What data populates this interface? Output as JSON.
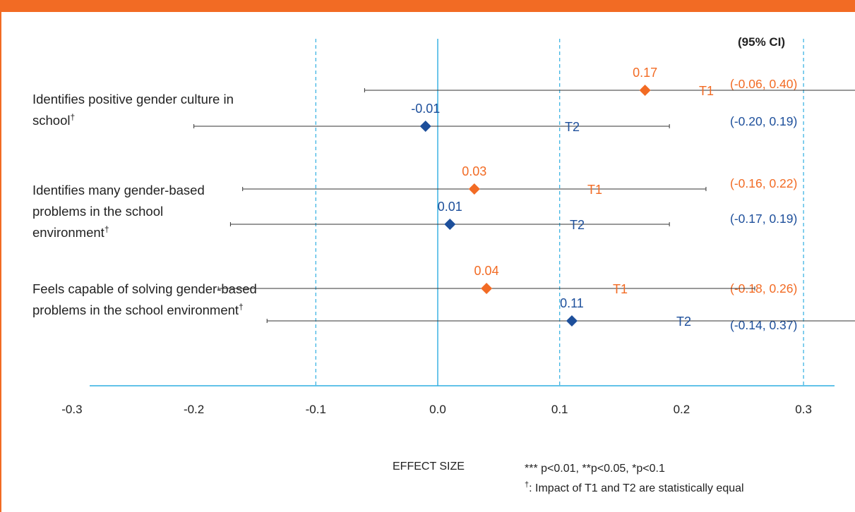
{
  "colors": {
    "accent": "#f26b24",
    "t1": "#f26b24",
    "t2": "#1d4f9b",
    "axis": "#2eaee0"
  },
  "ci_header": "(95% CI)",
  "rows": [
    {
      "label": "Identifies positive gender culture in school",
      "dagger": "†"
    },
    {
      "label": "Identifies many gender-based problems in the school environment",
      "dagger": "†"
    },
    {
      "label": "Feels capable of solving gender-based problems in the school environment",
      "dagger": "†"
    }
  ],
  "chart_data": {
    "type": "forest",
    "xlabel": "EFFECT SIZE",
    "xlim": [
      -0.5,
      0.6
    ],
    "x_ticks": [
      "-0.5",
      "-0.4",
      "-0.3",
      "-0.2",
      "-0.1",
      "0.0",
      "0.1",
      "0.2",
      "0.3",
      "0.4",
      "0.5",
      "0.6"
    ],
    "reference_lines": [
      -0.1,
      0.1,
      0.3
    ],
    "zero_line": 0.0,
    "series": [
      {
        "name": "T1",
        "color": "#f26b24"
      },
      {
        "name": "T2",
        "color": "#1d4f9b"
      }
    ],
    "points": [
      {
        "row": 0,
        "series": "T1",
        "estimate": 0.17,
        "label": "0.17",
        "ci_low": -0.06,
        "ci_high": 0.4,
        "ci_text": "(-0.06, 0.40)"
      },
      {
        "row": 0,
        "series": "T2",
        "estimate": -0.01,
        "label": "-0.01",
        "ci_low": -0.2,
        "ci_high": 0.19,
        "ci_text": "(-0.20, 0.19)"
      },
      {
        "row": 1,
        "series": "T1",
        "estimate": 0.03,
        "label": "0.03",
        "ci_low": -0.16,
        "ci_high": 0.22,
        "ci_text": "(-0.16, 0.22)"
      },
      {
        "row": 1,
        "series": "T2",
        "estimate": 0.01,
        "label": "0.01",
        "ci_low": -0.17,
        "ci_high": 0.19,
        "ci_text": "(-0.17, 0.19)"
      },
      {
        "row": 2,
        "series": "T1",
        "estimate": 0.04,
        "label": "0.04",
        "ci_low": -0.18,
        "ci_high": 0.26,
        "ci_text": "(-0.18, 0.26)"
      },
      {
        "row": 2,
        "series": "T2",
        "estimate": 0.11,
        "label": "0.11",
        "ci_low": -0.14,
        "ci_high": 0.37,
        "ci_text": "(-0.14, 0.37)"
      }
    ]
  },
  "notes": {
    "significance": "*** p<0.01, **p<0.05, *p<0.1",
    "dagger_symbol": "†",
    "dagger_note": ": Impact of T1 and T2 are statistically equal"
  }
}
